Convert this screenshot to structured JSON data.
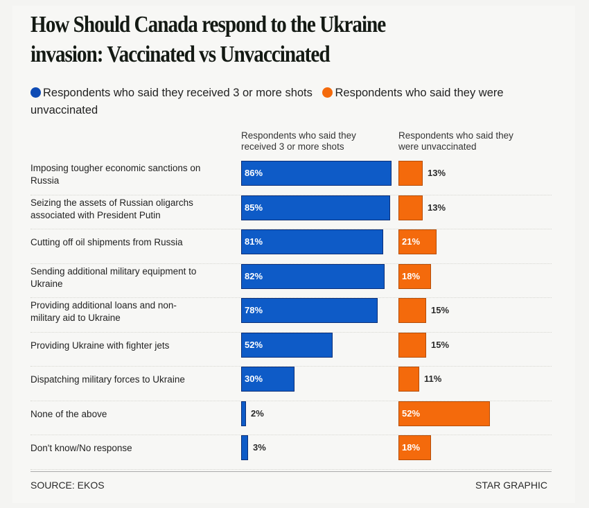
{
  "title": "How Should Canada respond to the Ukraine invasion: Vaccinated vs Unvaccinated",
  "title_lines": [
    "How Should Canada respond to the Ukraine",
    "invasion: Vaccinated vs Unvaccinated"
  ],
  "legend": {
    "vaccinated": "Respondents who said they received 3 or more shots",
    "unvaccinated": "Respondents who said they were unvaccinated"
  },
  "column_headers": {
    "left": [
      "Respondents who said they",
      "received 3 or more shots"
    ],
    "right": [
      "Respondents who said they",
      "were unvaccinated"
    ]
  },
  "colors": {
    "vaccinated": "#0e5bc7",
    "unvaccinated": "#f46a0c"
  },
  "footer": {
    "source": "SOURCE: EKOS",
    "credit": "STAR GRAPHIC"
  },
  "chart_data": {
    "type": "bar",
    "orientation": "horizontal",
    "title": "How Should Canada respond to the Ukraine invasion: Vaccinated vs Unvaccinated",
    "xlabel": "",
    "ylabel": "",
    "xlim": [
      0,
      100
    ],
    "unit": "%",
    "legend_position": "top",
    "categories": [
      [
        "Imposing tougher economic sanctions on",
        "Russia"
      ],
      [
        "Seizing the assets of Russian oligarchs",
        "associated with President Putin"
      ],
      [
        "Cutting off oil shipments from Russia"
      ],
      [
        "Sending additional military equipment to",
        "Ukraine"
      ],
      [
        "Providing additional loans and non-",
        "military aid to Ukraine"
      ],
      [
        "Providing Ukraine with fighter jets"
      ],
      [
        "Dispatching military forces to Ukraine"
      ],
      [
        "None of the above"
      ],
      [
        "Don't know/No response"
      ]
    ],
    "series": [
      {
        "name": "Respondents who said they received 3 or more shots",
        "values": [
          86,
          85,
          81,
          82,
          78,
          52,
          30,
          2,
          3
        ],
        "labels": [
          "86%",
          "85%",
          "81%",
          "82%",
          "78%",
          "52%",
          "30%",
          "2%",
          "3%"
        ]
      },
      {
        "name": "Respondents who said they were unvaccinated",
        "values": [
          13,
          13,
          21,
          18,
          15,
          15,
          11,
          52,
          18
        ],
        "labels": [
          "13%",
          "13%",
          "21%",
          "18%",
          "15%",
          "15%",
          "11%",
          "52%",
          "18%"
        ]
      }
    ],
    "source": "SOURCE: EKOS"
  }
}
